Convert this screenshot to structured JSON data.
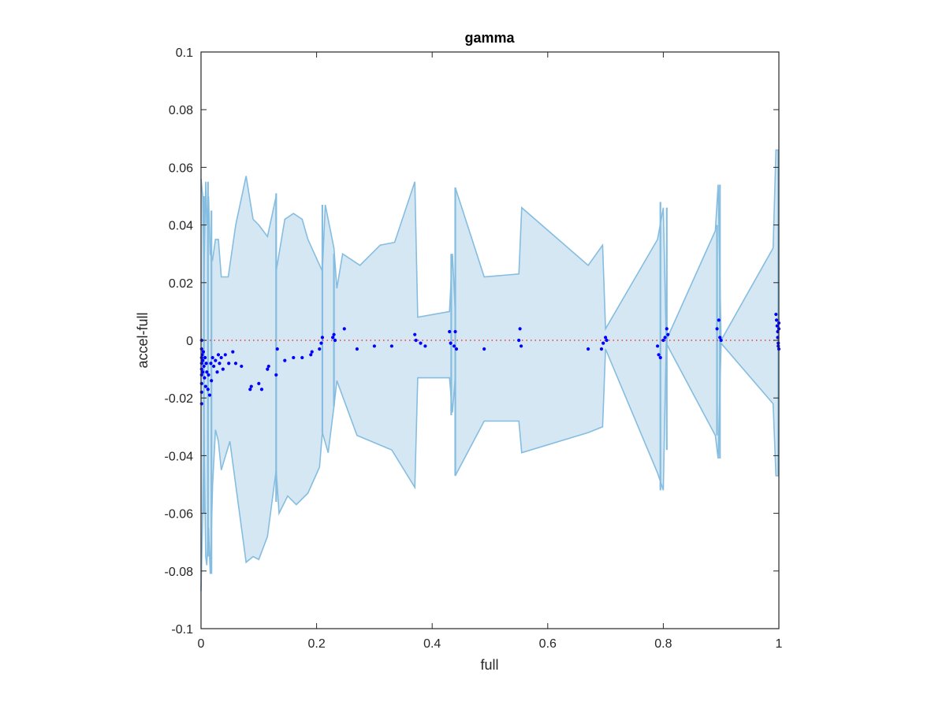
{
  "chart_data": {
    "type": "area",
    "title": "gamma",
    "xlabel": "full",
    "ylabel": "accel-full",
    "xlim": [
      0,
      1
    ],
    "ylim": [
      -0.1,
      0.1
    ],
    "xticks": [
      0,
      0.2,
      0.4,
      0.6,
      0.8,
      1
    ],
    "xtick_labels": [
      "0",
      "0.2",
      "0.4",
      "0.6",
      "0.8",
      "1"
    ],
    "yticks": [
      -0.1,
      -0.08,
      -0.06,
      -0.04,
      -0.02,
      0,
      0.02,
      0.04,
      0.06,
      0.08,
      0.1
    ],
    "ytick_labels": [
      "-0.1",
      "-0.08",
      "-0.06",
      "-0.04",
      "-0.02",
      "0",
      "0.02",
      "0.04",
      "0.06",
      "0.08",
      "0.1"
    ],
    "grid": false,
    "colors": {
      "band_fill": "#d6e7f4",
      "band_edge": "#85bde0",
      "points": "#0000ff",
      "zero_line": "#ff3333",
      "axes": "#262626"
    },
    "zero_line": {
      "y": 0,
      "style": "dotted"
    },
    "band": {
      "upper": [
        [
          0,
          0.056
        ],
        [
          0.003,
          0.05
        ],
        [
          0.005,
          0.022
        ],
        [
          0.008,
          0.055
        ],
        [
          0.01,
          0.04
        ],
        [
          0.013,
          0.05
        ],
        [
          0.016,
          0.03
        ],
        [
          0.02,
          0.028
        ],
        [
          0.025,
          0.035
        ],
        [
          0.03,
          0.035
        ],
        [
          0.035,
          0.022
        ],
        [
          0.047,
          0.022
        ],
        [
          0.06,
          0.04
        ],
        [
          0.078,
          0.057
        ],
        [
          0.09,
          0.042
        ],
        [
          0.1,
          0.04
        ],
        [
          0.115,
          0.036
        ],
        [
          0.13,
          0.05
        ],
        [
          0.13,
          0.024
        ],
        [
          0.145,
          0.042
        ],
        [
          0.16,
          0.044
        ],
        [
          0.175,
          0.042
        ],
        [
          0.185,
          0.035
        ],
        [
          0.21,
          0.024
        ],
        [
          0.215,
          0.047
        ],
        [
          0.23,
          0.032
        ],
        [
          0.235,
          0.018
        ],
        [
          0.245,
          0.03
        ],
        [
          0.275,
          0.026
        ],
        [
          0.31,
          0.033
        ],
        [
          0.335,
          0.034
        ],
        [
          0.37,
          0.055
        ],
        [
          0.375,
          0.008
        ],
        [
          0.43,
          0.01
        ],
        [
          0.435,
          0.03
        ],
        [
          0.44,
          0.01
        ],
        [
          0.44,
          0.053
        ],
        [
          0.49,
          0.022
        ],
        [
          0.55,
          0.023
        ],
        [
          0.555,
          0.046
        ],
        [
          0.67,
          0.026
        ],
        [
          0.695,
          0.033
        ],
        [
          0.7,
          0.004
        ],
        [
          0.79,
          0.035
        ],
        [
          0.8,
          0.046
        ],
        [
          0.805,
          0
        ],
        [
          0.89,
          0.038
        ],
        [
          0.895,
          0.054
        ],
        [
          0.9,
          0
        ],
        [
          0.99,
          0.032
        ],
        [
          0.995,
          0.066
        ],
        [
          1,
          0.066
        ]
      ],
      "lower": [
        [
          0,
          -0.087
        ],
        [
          0.003,
          -0.06
        ],
        [
          0.005,
          -0.03
        ],
        [
          0.008,
          -0.075
        ],
        [
          0.01,
          -0.078
        ],
        [
          0.013,
          -0.065
        ],
        [
          0.016,
          -0.081
        ],
        [
          0.02,
          -0.05
        ],
        [
          0.025,
          -0.031
        ],
        [
          0.03,
          -0.035
        ],
        [
          0.035,
          -0.045
        ],
        [
          0.05,
          -0.035
        ],
        [
          0.07,
          -0.065
        ],
        [
          0.078,
          -0.077
        ],
        [
          0.09,
          -0.075
        ],
        [
          0.1,
          -0.076
        ],
        [
          0.115,
          -0.068
        ],
        [
          0.13,
          -0.045
        ],
        [
          0.135,
          -0.06
        ],
        [
          0.15,
          -0.054
        ],
        [
          0.165,
          -0.057
        ],
        [
          0.185,
          -0.053
        ],
        [
          0.205,
          -0.044
        ],
        [
          0.21,
          -0.032
        ],
        [
          0.22,
          -0.039
        ],
        [
          0.23,
          -0.023
        ],
        [
          0.235,
          -0.014
        ],
        [
          0.27,
          -0.033
        ],
        [
          0.33,
          -0.038
        ],
        [
          0.37,
          -0.051
        ],
        [
          0.375,
          -0.013
        ],
        [
          0.43,
          -0.013
        ],
        [
          0.435,
          -0.025
        ],
        [
          0.44,
          -0.013
        ],
        [
          0.44,
          -0.047
        ],
        [
          0.49,
          -0.028
        ],
        [
          0.55,
          -0.028
        ],
        [
          0.555,
          -0.039
        ],
        [
          0.67,
          -0.032
        ],
        [
          0.695,
          -0.03
        ],
        [
          0.7,
          -0.003
        ],
        [
          0.79,
          -0.046
        ],
        [
          0.8,
          -0.052
        ],
        [
          0.805,
          -0.001
        ],
        [
          0.89,
          -0.033
        ],
        [
          0.895,
          -0.041
        ],
        [
          0.9,
          -0.001
        ],
        [
          0.99,
          -0.022
        ],
        [
          0.995,
          -0.047
        ],
        [
          1,
          -0.047
        ]
      ],
      "spikes": [
        [
          0.005,
          0.05,
          -0.06
        ],
        [
          0.012,
          0.055,
          -0.075
        ],
        [
          0.018,
          0.045,
          -0.081
        ],
        [
          0.13,
          0.051,
          -0.056
        ],
        [
          0.21,
          0.047,
          -0.032
        ],
        [
          0.23,
          0.03,
          -0.023
        ],
        [
          0.433,
          0.03,
          -0.026
        ],
        [
          0.44,
          0.053,
          -0.047
        ],
        [
          0.795,
          0.048,
          -0.052
        ],
        [
          0.806,
          0.046,
          -0.038
        ],
        [
          0.893,
          0.04,
          -0.033
        ],
        [
          0.898,
          0.054,
          -0.041
        ],
        [
          0.999,
          0.066,
          -0.047
        ]
      ]
    },
    "points": [
      [
        0.001,
        0.0
      ],
      [
        0.001,
        -0.003
      ],
      [
        0.001,
        -0.006
      ],
      [
        0.001,
        -0.008
      ],
      [
        0.001,
        -0.01
      ],
      [
        0.001,
        -0.012
      ],
      [
        0.001,
        -0.015
      ],
      [
        0.001,
        -0.018
      ],
      [
        0.001,
        -0.022
      ],
      [
        0.002,
        -0.005
      ],
      [
        0.003,
        -0.007
      ],
      [
        0.003,
        -0.011
      ],
      [
        0.004,
        -0.004
      ],
      [
        0.005,
        -0.009
      ],
      [
        0.006,
        -0.013
      ],
      [
        0.007,
        -0.006
      ],
      [
        0.008,
        -0.016
      ],
      [
        0.009,
        -0.008
      ],
      [
        0.01,
        -0.011
      ],
      [
        0.012,
        -0.017
      ],
      [
        0.013,
        -0.012
      ],
      [
        0.015,
        -0.019
      ],
      [
        0.017,
        -0.008
      ],
      [
        0.018,
        -0.014
      ],
      [
        0.02,
        -0.006
      ],
      [
        0.022,
        -0.009
      ],
      [
        0.025,
        -0.007
      ],
      [
        0.028,
        -0.011
      ],
      [
        0.03,
        -0.005
      ],
      [
        0.032,
        -0.008
      ],
      [
        0.035,
        -0.006
      ],
      [
        0.038,
        -0.01
      ],
      [
        0.042,
        -0.005
      ],
      [
        0.048,
        -0.008
      ],
      [
        0.055,
        -0.004
      ],
      [
        0.06,
        -0.008
      ],
      [
        0.07,
        -0.009
      ],
      [
        0.085,
        -0.017
      ],
      [
        0.087,
        -0.016
      ],
      [
        0.1,
        -0.015
      ],
      [
        0.105,
        -0.017
      ],
      [
        0.115,
        -0.01
      ],
      [
        0.117,
        -0.009
      ],
      [
        0.13,
        -0.012
      ],
      [
        0.132,
        -0.003
      ],
      [
        0.145,
        -0.007
      ],
      [
        0.16,
        -0.006
      ],
      [
        0.175,
        -0.006
      ],
      [
        0.19,
        -0.005
      ],
      [
        0.192,
        -0.004
      ],
      [
        0.205,
        -0.003
      ],
      [
        0.208,
        -0.001
      ],
      [
        0.21,
        0.001
      ],
      [
        0.228,
        0.001
      ],
      [
        0.23,
        0.002
      ],
      [
        0.232,
        0.0
      ],
      [
        0.248,
        0.004
      ],
      [
        0.27,
        -0.003
      ],
      [
        0.3,
        -0.002
      ],
      [
        0.33,
        -0.002
      ],
      [
        0.37,
        0.002
      ],
      [
        0.372,
        0.0
      ],
      [
        0.38,
        -0.001
      ],
      [
        0.388,
        -0.002
      ],
      [
        0.43,
        0.003
      ],
      [
        0.432,
        -0.001
      ],
      [
        0.438,
        -0.002
      ],
      [
        0.44,
        0.003
      ],
      [
        0.442,
        -0.003
      ],
      [
        0.49,
        -0.003
      ],
      [
        0.55,
        0.0
      ],
      [
        0.552,
        0.004
      ],
      [
        0.554,
        -0.002
      ],
      [
        0.67,
        -0.003
      ],
      [
        0.693,
        -0.003
      ],
      [
        0.696,
        -0.001
      ],
      [
        0.7,
        0.001
      ],
      [
        0.702,
        0.0
      ],
      [
        0.79,
        -0.002
      ],
      [
        0.792,
        -0.005
      ],
      [
        0.795,
        -0.006
      ],
      [
        0.8,
        0.0
      ],
      [
        0.803,
        0.001
      ],
      [
        0.806,
        0.004
      ],
      [
        0.808,
        0.002
      ],
      [
        0.893,
        0.004
      ],
      [
        0.896,
        0.007
      ],
      [
        0.898,
        0.001
      ],
      [
        0.9,
        0.0
      ],
      [
        0.995,
        0.009
      ],
      [
        0.996,
        0.007
      ],
      [
        0.997,
        0.005
      ],
      [
        0.998,
        0.003
      ],
      [
        0.998,
        0.001
      ],
      [
        0.999,
        -0.001
      ],
      [
        0.999,
        -0.002
      ],
      [
        1.0,
        0.004
      ],
      [
        1.0,
        0.006
      ],
      [
        1.0,
        -0.003
      ]
    ]
  }
}
